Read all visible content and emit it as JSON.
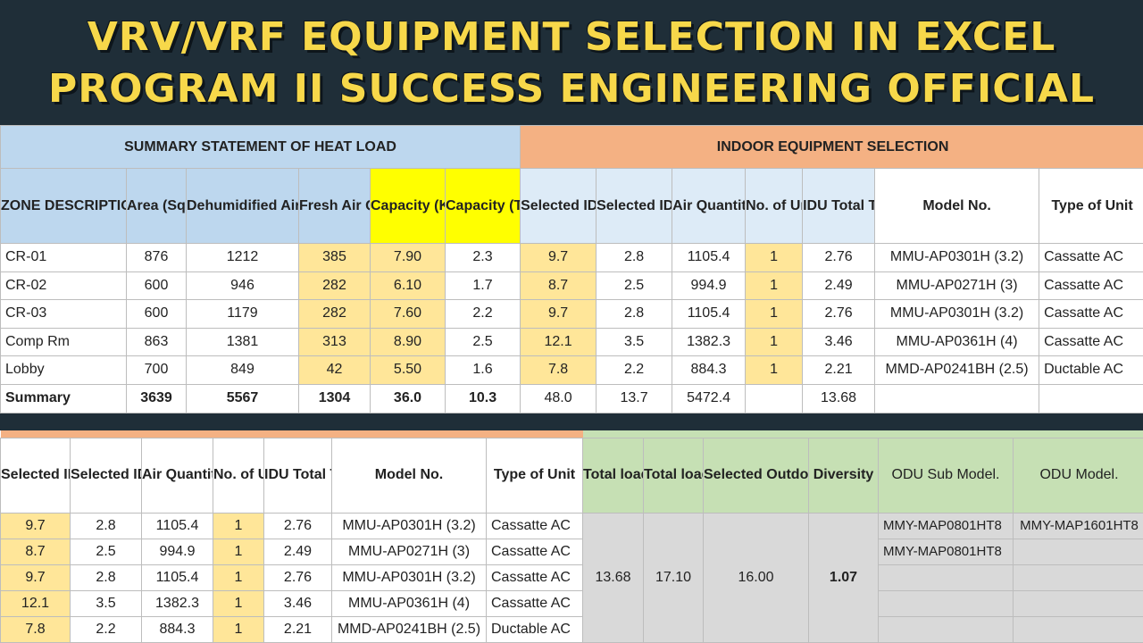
{
  "banner": {
    "line1": "VRV/VRF EQUIPMENT SELECTION IN EXCEL",
    "line2": "PROGRAM II SUCCESS ENGINEERING OFFICIAL"
  },
  "top_table": {
    "section_left": "SUMMARY STATEMENT OF HEAT LOAD",
    "section_right": "INDOOR EQUIPMENT SELECTION",
    "headers": [
      "ZONE DESCRIPTION",
      "Area (Sq.ft)",
      "Dehumidified Air Qty (CFM)",
      "Fresh Air Qty (CFM)",
      "Capacity (KW)",
      "Capacity (TR)",
      "Selected IDU (KW)",
      "Selected IDU (TR)",
      "Air Quantity",
      "No. of Units",
      "IDU Total TR",
      "Model No.",
      "Type of Unit"
    ],
    "rows": [
      [
        "CR-01",
        "876",
        "1212",
        "385",
        "7.90",
        "2.3",
        "9.7",
        "2.8",
        "1105.4",
        "1",
        "2.76",
        "MMU-AP0301H (3.2)",
        "Cassatte AC"
      ],
      [
        "CR-02",
        "600",
        "946",
        "282",
        "6.10",
        "1.7",
        "8.7",
        "2.5",
        "994.9",
        "1",
        "2.49",
        "MMU-AP0271H (3)",
        "Cassatte AC"
      ],
      [
        "CR-03",
        "600",
        "1179",
        "282",
        "7.60",
        "2.2",
        "9.7",
        "2.8",
        "1105.4",
        "1",
        "2.76",
        "MMU-AP0301H (3.2)",
        "Cassatte AC"
      ],
      [
        "Comp Rm",
        "863",
        "1381",
        "313",
        "8.90",
        "2.5",
        "12.1",
        "3.5",
        "1382.3",
        "1",
        "3.46",
        "MMU-AP0361H (4)",
        "Cassatte AC"
      ],
      [
        "Lobby",
        "700",
        "849",
        "42",
        "5.50",
        "1.6",
        "7.8",
        "2.2",
        "884.3",
        "1",
        "2.21",
        "MMD-AP0241BH (2.5)",
        "Ductable AC"
      ]
    ],
    "summary": [
      "Summary",
      "3639",
      "5567",
      "1304",
      "36.0",
      "10.3",
      "48.0",
      "13.7",
      "5472.4",
      "",
      "13.68",
      "",
      ""
    ]
  },
  "bottom_table": {
    "headers": [
      "Selected IDU (KW)",
      "Selected IDU (TR)",
      "Air Quantity",
      "No. of Units",
      "IDU Total TR",
      "Model No.",
      "Type of Unit",
      "Total load in TR",
      "Total load in HP",
      "Selected Outdoor unit Capacity in HP",
      "Diversity",
      "ODU Sub Model.",
      "ODU Model."
    ],
    "rows": [
      [
        "9.7",
        "2.8",
        "1105.4",
        "1",
        "2.76",
        "MMU-AP0301H (3.2)",
        "Cassatte AC"
      ],
      [
        "8.7",
        "2.5",
        "994.9",
        "1",
        "2.49",
        "MMU-AP0271H (3)",
        "Cassatte AC"
      ],
      [
        "9.7",
        "2.8",
        "1105.4",
        "1",
        "2.76",
        "MMU-AP0301H (3.2)",
        "Cassatte AC"
      ],
      [
        "12.1",
        "3.5",
        "1382.3",
        "1",
        "3.46",
        "MMU-AP0361H (4)",
        "Cassatte AC"
      ],
      [
        "7.8",
        "2.2",
        "884.3",
        "1",
        "2.21",
        "MMD-AP0241BH (2.5)",
        "Ductable AC"
      ]
    ],
    "totals": {
      "total_tr": "13.68",
      "total_hp": "17.10",
      "odu_hp": "16.00",
      "diversity": "1.07"
    },
    "odu_sub_models": [
      "MMY-MAP0801HT8",
      "MMY-MAP0801HT8",
      "",
      "",
      ""
    ],
    "odu_model": "MMY-MAP1601HT8"
  },
  "colors": {
    "banner_bg": "#1f2e38",
    "banner_text": "#f7d84a",
    "heat_load_header": "#bdd7ee",
    "indoor_header": "#f4b183",
    "capacity_header": "#ffff00",
    "highlight_cell": "#ffe699",
    "outdoor_header": "#c6e0b4"
  }
}
